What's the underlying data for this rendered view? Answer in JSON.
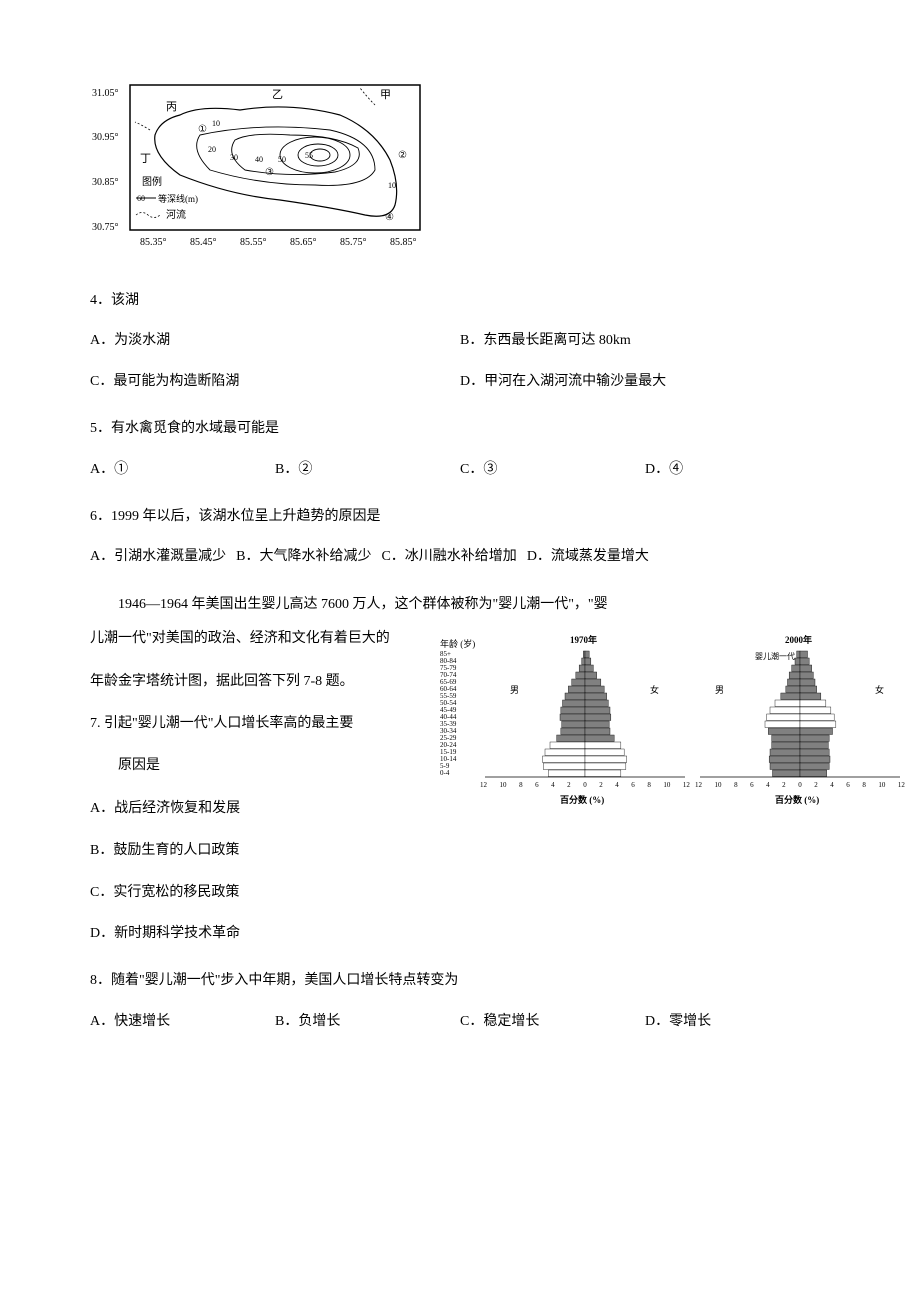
{
  "map": {
    "lat_ticks": [
      "31.05°",
      "30.95°",
      "30.85°",
      "30.75°"
    ],
    "lon_ticks": [
      "85.35°",
      "85.45°",
      "85.55°",
      "85.65°",
      "85.75°",
      "85.85°"
    ],
    "labels": {
      "jia": "甲",
      "yi": "乙",
      "bing": "丙",
      "ding": "丁"
    },
    "markers": [
      "①",
      "②",
      "③",
      "④"
    ],
    "legend_title": "图例",
    "legend_contour": "等深线(m)",
    "legend_river": "河流",
    "contour_sample": "60",
    "contour_values": [
      "10",
      "20",
      "30",
      "40",
      "50",
      "55",
      "10"
    ],
    "stroke": "#000000",
    "bg": "#ffffff",
    "fontsize": 9
  },
  "q4": {
    "stem": "4．该湖",
    "A": "A．为淡水湖",
    "B": "B．东西最长距离可达 80km",
    "C": "C．最可能为构造断陷湖",
    "D": "D．甲河在入湖河流中输沙量最大"
  },
  "q5": {
    "stem": "5．有水禽觅食的水域最可能是",
    "A": "A．①",
    "B": "B．②",
    "C": "C．③",
    "D": "D．④"
  },
  "q6": {
    "stem": "6．1999 年以后，该湖水位呈上升趋势的原因是",
    "A": "A．引湖水灌溉量减少",
    "B": "B．大气降水补给减少",
    "C": "C．冰川融水补给增加",
    "D": "D．流域蒸发量增大"
  },
  "passage7": {
    "line1": "1946—1964 年美国出生婴儿高达 7600 万人，这个群体被称为\"婴儿潮一代\"，\"婴",
    "line2": "儿潮一代\"对美国的政治、经济和文化有着巨大的",
    "line3": "年龄金字塔统计图，据此回答下列 7-8 题。"
  },
  "q7": {
    "stem": "7. 引起\"婴儿潮一代\"人口增长率高的最主要",
    "stem2": "原因是",
    "A": "A．战后经济恢复和发展",
    "B": "B．鼓励生育的人口政策",
    "C": "C．实行宽松的移民政策",
    "D": "D．新时期科学技术革命"
  },
  "q8": {
    "stem": "8．随着\"婴儿潮一代\"步入中年期，美国人口增长特点转变为",
    "A": "A．快速增长",
    "B": "B．负增长",
    "C": "C．稳定增长",
    "D": "D．零增长"
  },
  "pyramid": {
    "axis_title": "年龄 (岁)",
    "age_groups": [
      "85+",
      "80-84",
      "75-79",
      "70-74",
      "65-69",
      "60-64",
      "55-59",
      "50-54",
      "45-49",
      "40-44",
      "35-39",
      "30-34",
      "25-29",
      "20-24",
      "15-19",
      "10-14",
      "5-9",
      "0-4"
    ],
    "x_ticks": [
      "12",
      "10",
      "8",
      "6",
      "4",
      "2",
      "0",
      "2",
      "4",
      "6",
      "8",
      "10",
      "12"
    ],
    "x_label": "百分数 (%)",
    "male": "男",
    "female": "女",
    "baby_boom_label": "婴儿潮一代",
    "bar_color": "#808080",
    "highlight_color": "#ffffff",
    "stroke": "#000000",
    "bg": "#ffffff",
    "p1970": {
      "title": "1970年",
      "male": [
        0.2,
        0.4,
        0.7,
        1.1,
        1.6,
        2.0,
        2.4,
        2.7,
        2.9,
        3.0,
        2.8,
        2.9,
        3.4,
        4.2,
        4.8,
        5.1,
        5.0,
        4.4
      ],
      "female": [
        0.5,
        0.7,
        1.0,
        1.4,
        1.9,
        2.3,
        2.6,
        2.8,
        3.0,
        3.1,
        2.9,
        3.0,
        3.5,
        4.3,
        4.7,
        5.0,
        4.9,
        4.3
      ],
      "highlight": [
        13,
        14,
        15,
        16,
        17
      ]
    },
    "p2000": {
      "title": "2000年",
      "male": [
        0.4,
        0.6,
        1.0,
        1.3,
        1.5,
        1.7,
        2.3,
        3.0,
        3.6,
        4.0,
        4.2,
        3.8,
        3.4,
        3.4,
        3.6,
        3.7,
        3.6,
        3.3
      ],
      "female": [
        0.9,
        1.1,
        1.4,
        1.6,
        1.8,
        2.0,
        2.5,
        3.1,
        3.7,
        4.1,
        4.3,
        3.9,
        3.5,
        3.4,
        3.5,
        3.6,
        3.5,
        3.2
      ],
      "highlight": [
        7,
        8,
        9,
        10
      ]
    }
  }
}
